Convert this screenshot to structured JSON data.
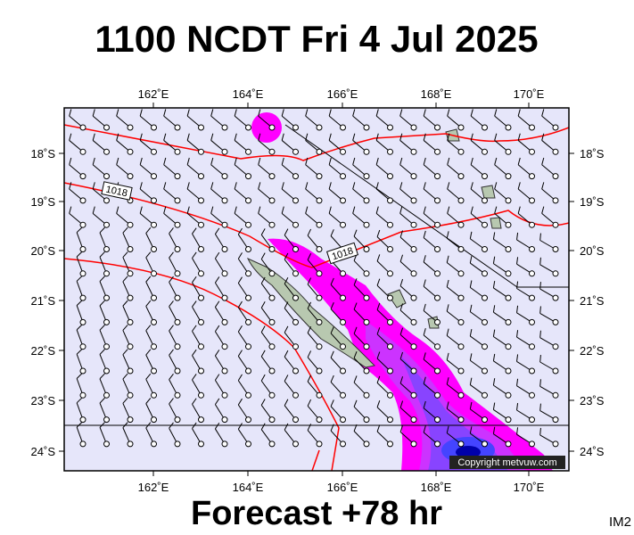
{
  "header": {
    "title": "1100 NCDT Fri 4 Jul 2025"
  },
  "footer": {
    "subtitle": "Forecast +78 hr",
    "code": "IM2",
    "copyright": "Copyright metvuw.com"
  },
  "axes": {
    "longitudes": [
      "162˚E",
      "164˚E",
      "166˚E",
      "168˚E",
      "170˚E"
    ],
    "latitudes": [
      "18˚S",
      "19˚S",
      "20˚S",
      "21˚S",
      "22˚S",
      "23˚S",
      "24˚S"
    ]
  },
  "isobar_labels": [
    "1018",
    "1018"
  ]
}
